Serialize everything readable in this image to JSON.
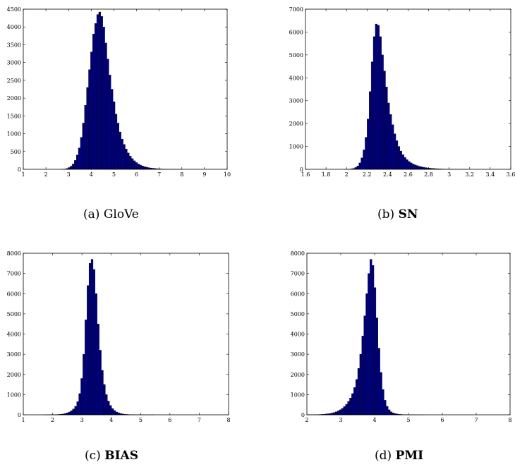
{
  "chart_data": [
    {
      "type": "bar",
      "caption_label": "(a)",
      "caption_name": "GloVe",
      "caption_bold": false,
      "xlim": [
        1,
        10
      ],
      "ylim": [
        0,
        4500
      ],
      "xticks": [
        1,
        2,
        3,
        4,
        5,
        6,
        7,
        8,
        9,
        10
      ],
      "yticks": [
        0,
        500,
        1000,
        1500,
        2000,
        2500,
        3000,
        3500,
        4000,
        4500
      ],
      "bin_start": 1.0,
      "bin_width": 0.09,
      "values": [
        0,
        0,
        0,
        0,
        0,
        0,
        0,
        0,
        0,
        0,
        0,
        0,
        0,
        0,
        0,
        0,
        0,
        0,
        1,
        4,
        10,
        25,
        50,
        90,
        150,
        250,
        400,
        600,
        900,
        1300,
        1800,
        2300,
        2800,
        3300,
        3800,
        4100,
        4350,
        4420,
        4300,
        4000,
        3550,
        3100,
        2650,
        2250,
        1900,
        1550,
        1300,
        1050,
        850,
        700,
        570,
        460,
        370,
        300,
        240,
        190,
        150,
        120,
        95,
        75,
        60,
        48,
        38,
        30,
        24,
        18,
        14,
        11,
        8,
        6,
        5,
        4,
        3,
        2,
        2,
        1,
        1,
        1,
        0,
        0,
        0,
        0,
        0,
        0,
        0,
        0,
        0,
        0,
        0,
        0,
        0,
        0,
        0,
        0,
        0,
        0,
        0,
        0,
        0,
        0
      ]
    },
    {
      "type": "bar",
      "caption_label": "(b)",
      "caption_name": "SN",
      "caption_bold": true,
      "xlim": [
        1.6,
        3.6
      ],
      "ylim": [
        0,
        7000
      ],
      "xticks": [
        1.6,
        1.8,
        2,
        2.2,
        2.4,
        2.6,
        2.8,
        3,
        3.2,
        3.4,
        3.6
      ],
      "xtick_labels": [
        "1.6",
        "1.8",
        "2",
        "2.2",
        "2.4",
        "2.6",
        "2.8",
        "3",
        "3.2",
        "3.4",
        "3.6"
      ],
      "yticks": [
        0,
        1000,
        2000,
        3000,
        4000,
        5000,
        6000,
        7000
      ],
      "bin_start": 1.8,
      "bin_width": 0.02,
      "values": [
        0,
        0,
        0,
        0,
        0,
        0,
        0,
        0,
        0,
        2,
        5,
        10,
        20,
        40,
        80,
        150,
        280,
        500,
        850,
        1400,
        2200,
        3400,
        4700,
        5800,
        6350,
        6300,
        5800,
        5000,
        4300,
        3600,
        2900,
        2400,
        1950,
        1550,
        1250,
        1000,
        800,
        640,
        520,
        420,
        340,
        280,
        230,
        190,
        160,
        130,
        110,
        90,
        75,
        62,
        50,
        42,
        35,
        28,
        22,
        18,
        14,
        11,
        9,
        7,
        6,
        5,
        4,
        3,
        2,
        2,
        1,
        1,
        1,
        0,
        0,
        0,
        0,
        0,
        0,
        0,
        0,
        0,
        0,
        0
      ]
    },
    {
      "type": "bar",
      "caption_label": "(c)",
      "caption_name": "BIAS",
      "caption_bold": true,
      "xlim": [
        1,
        8
      ],
      "ylim": [
        0,
        8000
      ],
      "xticks": [
        1,
        2,
        3,
        4,
        5,
        6,
        7,
        8
      ],
      "yticks": [
        0,
        1000,
        2000,
        3000,
        4000,
        5000,
        6000,
        7000,
        8000
      ],
      "bin_start": 1.0,
      "bin_width": 0.07,
      "values": [
        0,
        0,
        0,
        0,
        0,
        0,
        0,
        0,
        0,
        0,
        1,
        2,
        3,
        5,
        7,
        10,
        14,
        20,
        30,
        45,
        65,
        95,
        140,
        200,
        290,
        420,
        650,
        1050,
        1800,
        3000,
        4700,
        6400,
        7500,
        7700,
        7200,
        6000,
        4500,
        3200,
        2200,
        1500,
        1000,
        680,
        460,
        310,
        210,
        140,
        95,
        65,
        45,
        30,
        20,
        14,
        10,
        7,
        5,
        4,
        3,
        2,
        2,
        1,
        1,
        1,
        1,
        1,
        0,
        0,
        0,
        0,
        0,
        0,
        0,
        0,
        0,
        0,
        0,
        0,
        0,
        0,
        0,
        0,
        0,
        0,
        0,
        0,
        0,
        0,
        0,
        0,
        0,
        0,
        0,
        0,
        0,
        0,
        0,
        0,
        0,
        0,
        0,
        0
      ]
    },
    {
      "type": "bar",
      "caption_label": "(d)",
      "caption_name": "PMI",
      "caption_bold": true,
      "xlim": [
        2,
        8
      ],
      "ylim": [
        0,
        8000
      ],
      "xticks": [
        2,
        3,
        4,
        5,
        6,
        7,
        8
      ],
      "yticks": [
        0,
        1000,
        2000,
        3000,
        4000,
        5000,
        6000,
        7000,
        8000
      ],
      "bin_start": 2.0,
      "bin_width": 0.06,
      "values": [
        1,
        2,
        4,
        6,
        8,
        12,
        16,
        22,
        30,
        40,
        52,
        68,
        88,
        115,
        150,
        195,
        250,
        320,
        410,
        520,
        660,
        830,
        1050,
        1350,
        1750,
        2300,
        3000,
        3900,
        4900,
        6000,
        7000,
        7700,
        7400,
        6300,
        4800,
        3300,
        2100,
        1250,
        720,
        420,
        250,
        150,
        95,
        60,
        40,
        27,
        18,
        12,
        8,
        6,
        4,
        3,
        2,
        2,
        1,
        1,
        1,
        1,
        0,
        0,
        0,
        0,
        0,
        0,
        0,
        0,
        0,
        0,
        0,
        0,
        0,
        0,
        0,
        0,
        0,
        0,
        0,
        0,
        0,
        0,
        0,
        0,
        0,
        0,
        0,
        0,
        0,
        0,
        0,
        0,
        0,
        0,
        0,
        0,
        0,
        0,
        0,
        0,
        0,
        0
      ]
    }
  ]
}
